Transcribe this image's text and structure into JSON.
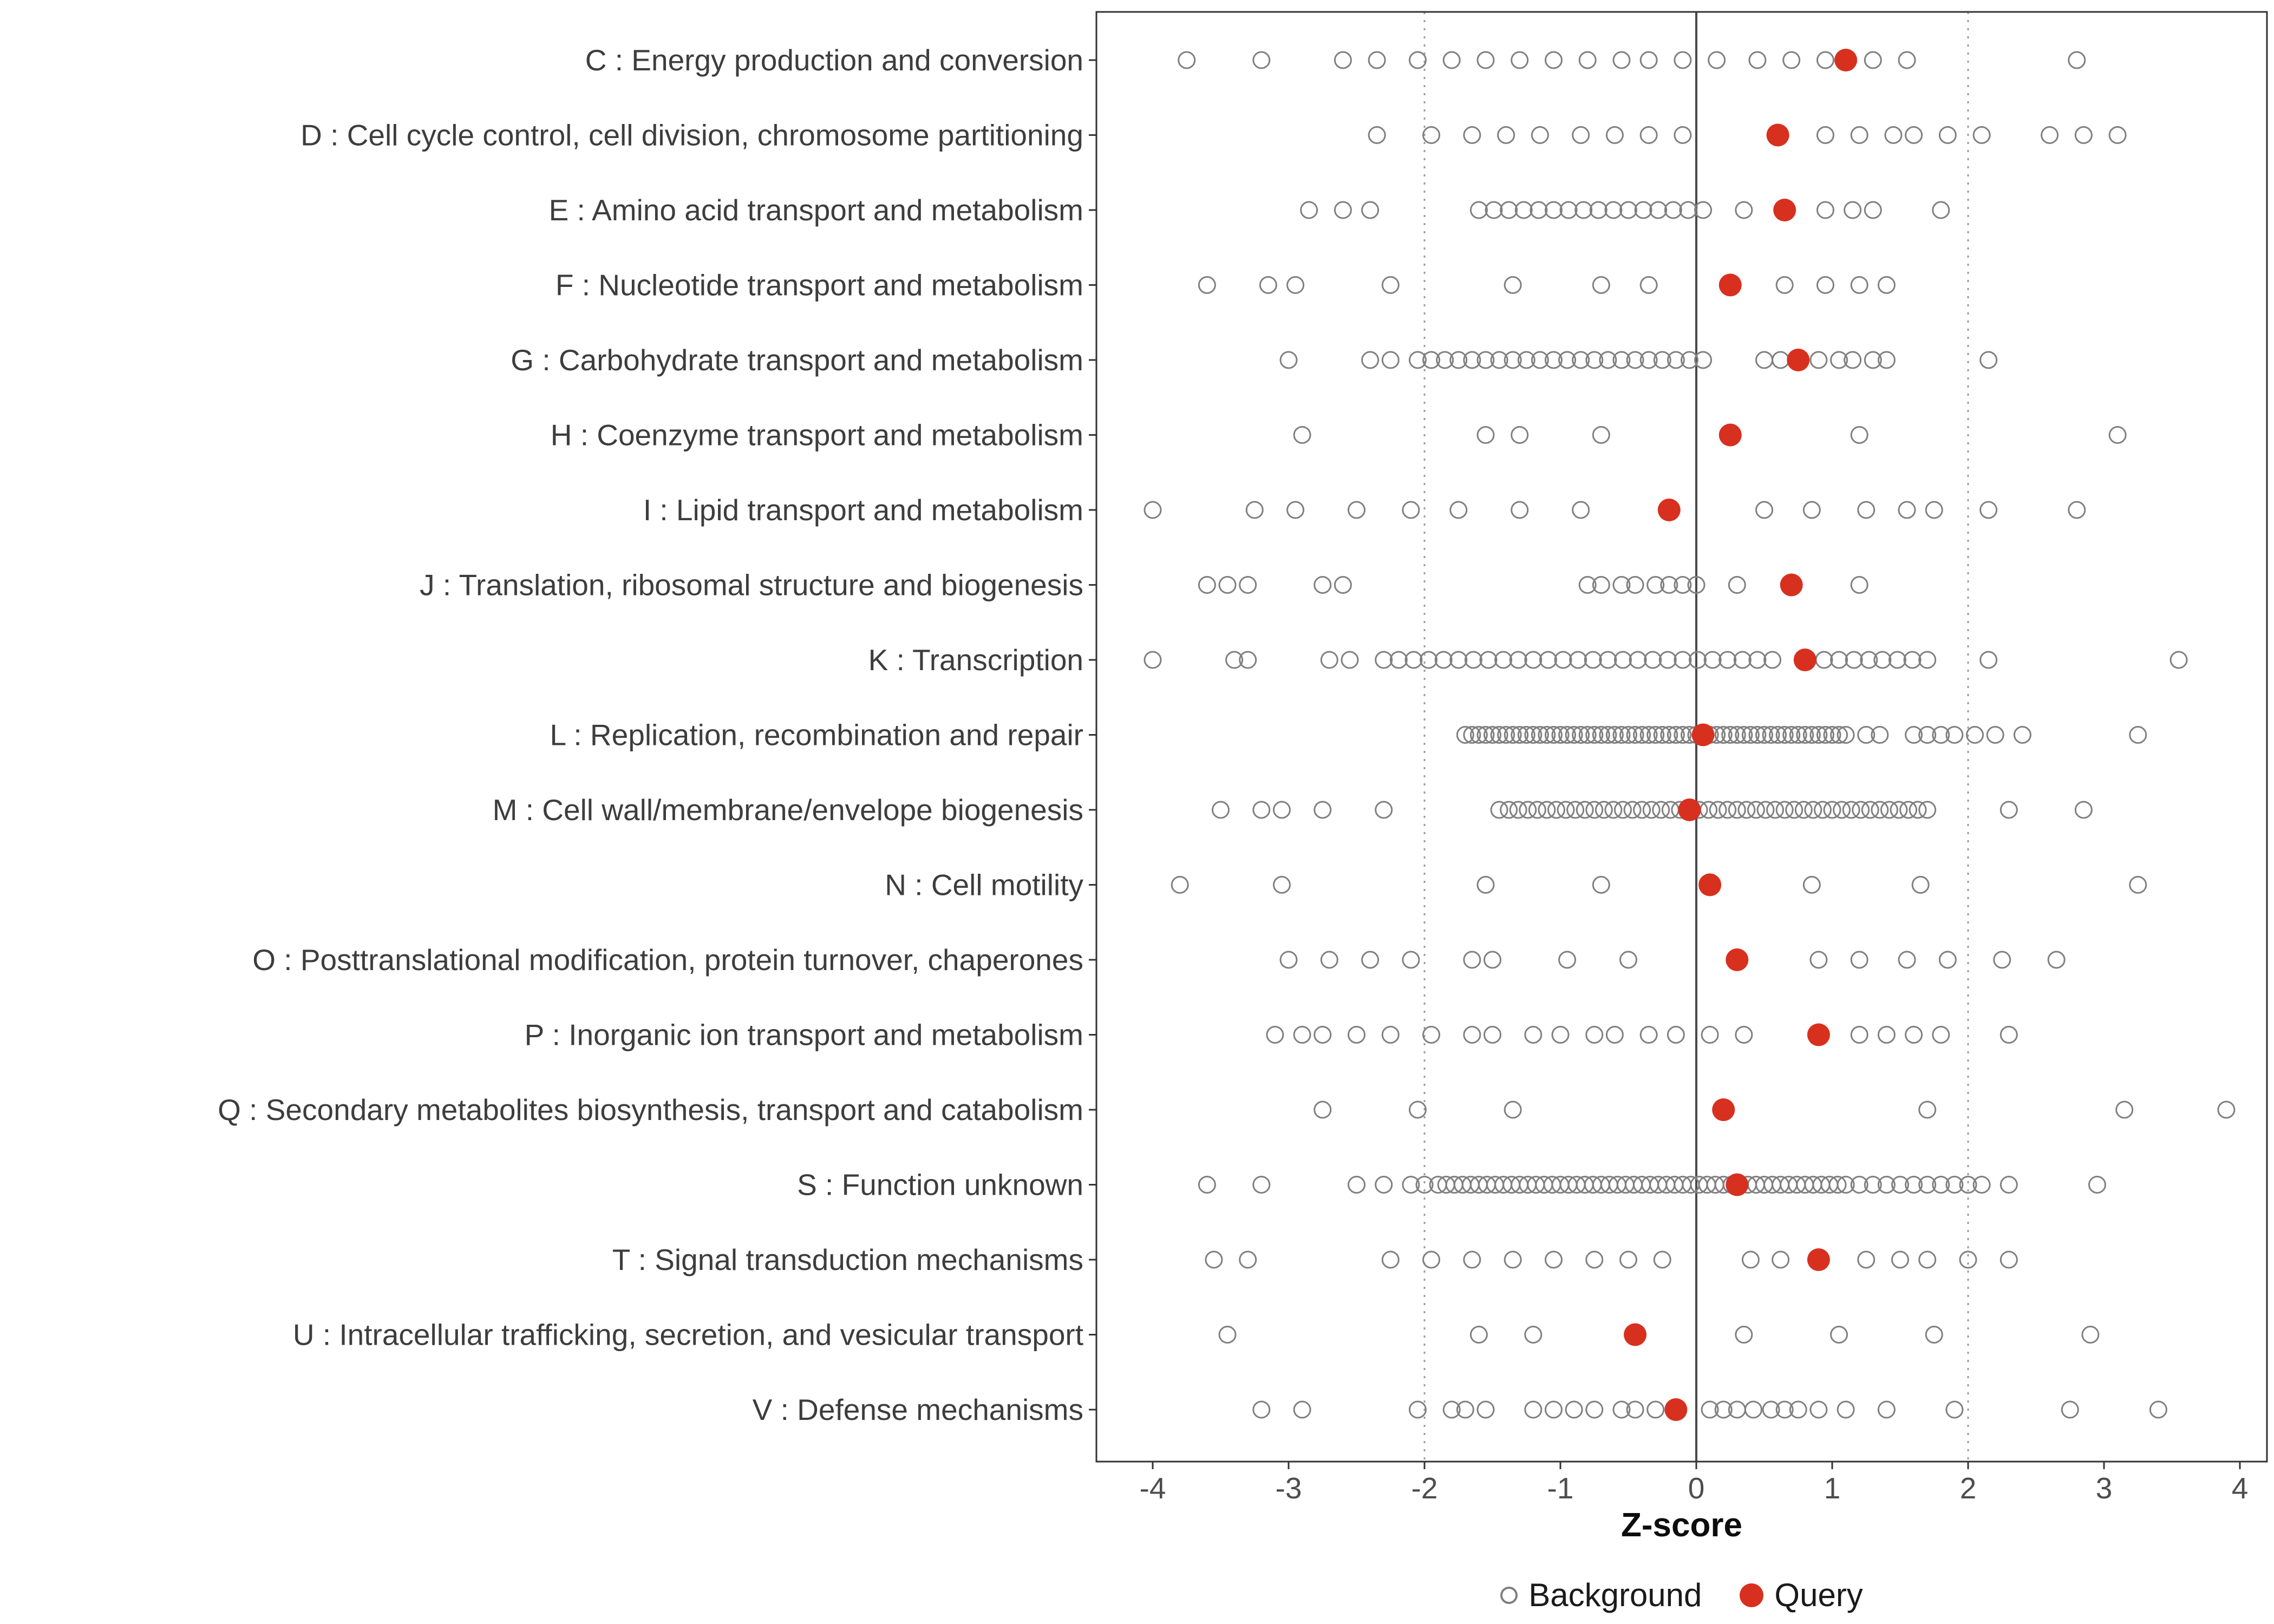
{
  "legend": {
    "background_label": "Background",
    "query_label": "Query"
  },
  "chart_data": {
    "type": "scatter",
    "title": "",
    "xlabel": "Z-score",
    "ylabel": "",
    "xlim": [
      -4.4,
      4.2
    ],
    "x_ticks": [
      -4,
      -3,
      -2,
      -1,
      0,
      1,
      2,
      3,
      4
    ],
    "grid": "off",
    "legend_position": "bottom",
    "reference_lines": {
      "solid": [
        0
      ],
      "dotted": [
        -2,
        2
      ]
    },
    "colors": {
      "background": "#808080",
      "query": "#d7301f",
      "axis_text": "#4d4d4d",
      "panel_border": "#333333",
      "zero_line": "#4a4a4a",
      "dotted_line": "#9b9b9b"
    },
    "legend": [
      "Background",
      "Query"
    ],
    "rows": [
      {
        "code": "C",
        "label": "C : Energy production and conversion",
        "query": 1.1,
        "background": [
          -3.75,
          -3.2,
          -2.6,
          -2.35,
          -2.05,
          -1.8,
          -1.55,
          -1.3,
          -1.05,
          -0.8,
          -0.55,
          -0.35,
          -0.1,
          0.15,
          0.45,
          0.7,
          0.95,
          1.3,
          1.55,
          2.8
        ]
      },
      {
        "code": "D",
        "label": "D : Cell cycle control, cell division, chromosome partitioning",
        "query": 0.6,
        "background": [
          -2.35,
          -1.95,
          -1.65,
          -1.4,
          -1.15,
          -0.85,
          -0.6,
          -0.35,
          -0.1,
          0.95,
          1.2,
          1.45,
          1.6,
          1.85,
          2.1,
          2.6,
          2.85,
          3.1
        ]
      },
      {
        "code": "E",
        "label": "E : Amino acid transport and metabolism",
        "query": 0.65,
        "background": [
          -2.85,
          -2.6,
          -2.4,
          {
            "from": -1.6,
            "to": 0.06,
            "step": 0.11
          },
          0.35,
          0.95,
          1.15,
          1.3,
          1.8
        ]
      },
      {
        "code": "F",
        "label": "F : Nucleotide transport and metabolism",
        "query": 0.25,
        "background": [
          -3.6,
          -3.15,
          -2.95,
          -2.25,
          -1.35,
          -0.7,
          -0.35,
          0.65,
          0.95,
          1.2,
          1.4
        ]
      },
      {
        "code": "G",
        "label": "G : Carbohydrate transport and metabolism",
        "query": 0.75,
        "background": [
          -3.0,
          -2.4,
          -2.25,
          {
            "from": -2.05,
            "to": 0.1,
            "step": 0.1
          },
          0.5,
          0.62,
          0.9,
          1.05,
          1.15,
          1.3,
          1.4,
          2.15
        ]
      },
      {
        "code": "H",
        "label": "H : Coenzyme transport and metabolism",
        "query": 0.25,
        "background": [
          -2.9,
          -1.55,
          -1.3,
          -0.7,
          1.2,
          3.1
        ]
      },
      {
        "code": "I",
        "label": "I : Lipid transport and metabolism",
        "query": -0.2,
        "background": [
          -4.0,
          -3.25,
          -2.95,
          -2.5,
          -2.1,
          -1.75,
          -1.3,
          -0.85,
          0.5,
          0.85,
          1.25,
          1.55,
          1.75,
          2.15,
          2.8
        ]
      },
      {
        "code": "J",
        "label": "J : Translation, ribosomal structure and biogenesis",
        "query": 0.7,
        "background": [
          -3.6,
          -3.45,
          -3.3,
          -2.75,
          -2.6,
          -0.8,
          -0.7,
          -0.55,
          -0.45,
          -0.3,
          -0.2,
          -0.1,
          0.0,
          0.3,
          1.2
        ]
      },
      {
        "code": "K",
        "label": "K : Transcription",
        "query": 0.8,
        "background": [
          -4.0,
          -3.4,
          -3.3,
          -2.7,
          -2.55,
          {
            "from": -2.3,
            "to": 0.56,
            "step": 0.11
          },
          0.94,
          1.05,
          1.16,
          1.27,
          1.37,
          1.48,
          1.59,
          1.7,
          2.15,
          3.55
        ]
      },
      {
        "code": "L",
        "label": "L : Replication, recombination and repair",
        "query": 0.05,
        "background": [
          {
            "from": -1.7,
            "to": 1.1,
            "step": 0.05
          },
          1.25,
          1.35,
          1.6,
          1.7,
          1.8,
          1.9,
          2.05,
          2.2,
          2.4,
          3.25
        ]
      },
      {
        "code": "M",
        "label": "M : Cell wall/membrane/envelope biogenesis",
        "query": -0.05,
        "background": [
          -3.5,
          -3.2,
          -3.05,
          -2.75,
          -2.3,
          {
            "from": -1.45,
            "to": 1.7,
            "step": 0.07
          },
          2.3,
          2.85
        ]
      },
      {
        "code": "N",
        "label": "N : Cell motility",
        "query": 0.1,
        "background": [
          -3.8,
          -3.05,
          -1.55,
          -0.7,
          0.85,
          1.65,
          3.25
        ]
      },
      {
        "code": "O",
        "label": "O : Posttranslational modification, protein turnover, chaperones",
        "query": 0.3,
        "background": [
          -3.0,
          -2.7,
          -2.4,
          -2.1,
          -1.65,
          -1.5,
          -0.95,
          -0.5,
          0.9,
          1.2,
          1.55,
          1.85,
          2.25,
          2.65
        ]
      },
      {
        "code": "P",
        "label": "P : Inorganic ion transport and metabolism",
        "query": 0.9,
        "background": [
          -3.1,
          -2.9,
          -2.75,
          -2.5,
          -2.25,
          -1.95,
          -1.65,
          -1.5,
          -1.2,
          -1.0,
          -0.75,
          -0.6,
          -0.35,
          -0.15,
          0.1,
          0.35,
          1.2,
          1.4,
          1.6,
          1.8,
          2.3
        ]
      },
      {
        "code": "Q",
        "label": "Q : Secondary metabolites biosynthesis, transport and catabolism",
        "query": 0.2,
        "background": [
          -2.75,
          -2.05,
          -1.35,
          1.7,
          3.15,
          3.9
        ]
      },
      {
        "code": "S",
        "label": "S : Function unknown",
        "query": 0.3,
        "background": [
          -3.6,
          -3.2,
          -2.5,
          -2.3,
          -2.1,
          -2.0,
          {
            "from": -1.9,
            "to": 1.1,
            "step": 0.06
          },
          1.2,
          1.3,
          1.4,
          1.5,
          1.6,
          1.7,
          1.8,
          1.9,
          2.0,
          2.1,
          2.3,
          2.95
        ]
      },
      {
        "code": "T",
        "label": "T : Signal transduction mechanisms",
        "query": 0.9,
        "background": [
          -3.55,
          -3.3,
          -2.25,
          -1.95,
          -1.65,
          -1.35,
          -1.05,
          -0.75,
          -0.5,
          -0.25,
          0.4,
          0.62,
          1.25,
          1.5,
          1.7,
          2.0,
          2.3
        ]
      },
      {
        "code": "U",
        "label": "U : Intracellular trafficking, secretion, and vesicular transport",
        "query": -0.45,
        "background": [
          -3.45,
          -1.6,
          -1.2,
          0.35,
          1.05,
          1.75,
          2.9
        ]
      },
      {
        "code": "V",
        "label": "V : Defense mechanisms",
        "query": -0.15,
        "background": [
          -3.2,
          -2.9,
          -2.05,
          -1.8,
          -1.7,
          -1.55,
          -1.2,
          -1.05,
          -0.9,
          -0.75,
          -0.55,
          -0.45,
          -0.3,
          0.1,
          0.2,
          0.3,
          0.42,
          0.55,
          0.65,
          0.75,
          0.9,
          1.1,
          1.4,
          1.9,
          2.75,
          3.4
        ]
      }
    ]
  }
}
